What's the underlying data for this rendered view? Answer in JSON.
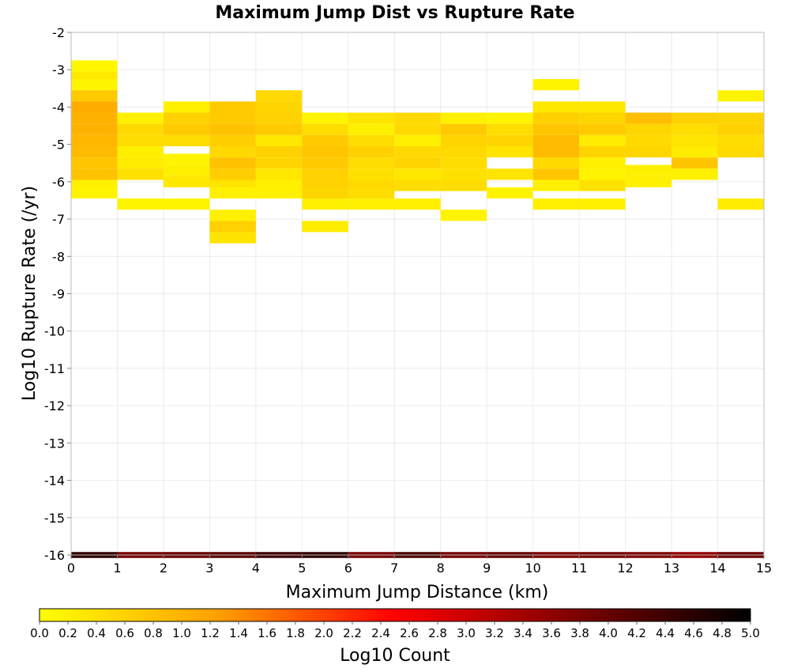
{
  "chart_data": {
    "type": "heatmap",
    "title": "Maximum Jump Dist vs Rupture Rate",
    "xlabel": "Maximum Jump Distance (km)",
    "ylabel": "Log10 Rupture Rate (/yr)",
    "xlim": [
      0,
      15
    ],
    "ylim": [
      -16,
      -2
    ],
    "x_ticks": [
      "0",
      "1",
      "2",
      "3",
      "4",
      "5",
      "6",
      "7",
      "8",
      "9",
      "10",
      "11",
      "12",
      "13",
      "14",
      "15"
    ],
    "y_ticks": [
      "-2",
      "-3",
      "-4",
      "-5",
      "-6",
      "-7",
      "-8",
      "-9",
      "-10",
      "-11",
      "-12",
      "-13",
      "-14",
      "-15",
      "-16"
    ],
    "grid": true,
    "colorscale": {
      "label": "Log10 Count",
      "range": [
        0,
        5
      ],
      "ticks": [
        "0.0",
        "0.2",
        "0.4",
        "0.6",
        "0.8",
        "1.0",
        "1.2",
        "1.4",
        "1.6",
        "1.8",
        "2.0",
        "2.2",
        "2.4",
        "2.6",
        "2.8",
        "3.0",
        "3.2",
        "3.4",
        "3.6",
        "3.8",
        "4.0",
        "4.2",
        "4.4",
        "4.6",
        "4.8",
        "5.0"
      ],
      "stops": [
        "#ffff00",
        "#ffa000",
        "#ff0000",
        "#800000",
        "#000000"
      ]
    },
    "cell_size": [
      1,
      0.3
    ],
    "cells": [
      [
        0,
        -2.9,
        0.1
      ],
      [
        0,
        -3.2,
        0.3
      ],
      [
        0,
        -3.4,
        0.15
      ],
      [
        0,
        -3.7,
        0.7
      ],
      [
        0,
        -4.0,
        1.1
      ],
      [
        0,
        -4.3,
        1.0
      ],
      [
        0,
        -4.6,
        1.0
      ],
      [
        0,
        -4.9,
        0.95
      ],
      [
        0,
        -5.2,
        0.9
      ],
      [
        0,
        -5.5,
        0.75
      ],
      [
        0,
        -5.8,
        0.8
      ],
      [
        0,
        -6.1,
        0.2
      ],
      [
        0,
        -6.3,
        0.15
      ],
      [
        1,
        -4.3,
        0.2
      ],
      [
        1,
        -4.6,
        0.5
      ],
      [
        1,
        -4.9,
        0.45
      ],
      [
        1,
        -5.2,
        0.2
      ],
      [
        1,
        -5.5,
        0.25
      ],
      [
        1,
        -5.8,
        0.4
      ],
      [
        1,
        -6.6,
        0.15
      ],
      [
        2,
        -4.0,
        0.2
      ],
      [
        2,
        -4.3,
        0.6
      ],
      [
        2,
        -4.6,
        0.7
      ],
      [
        2,
        -4.9,
        0.45
      ],
      [
        2,
        -5.4,
        0.15
      ],
      [
        2,
        -5.7,
        0.2
      ],
      [
        2,
        -6.0,
        0.3
      ],
      [
        2,
        -6.6,
        0.15
      ],
      [
        3,
        -4.0,
        0.7
      ],
      [
        3,
        -4.3,
        0.7
      ],
      [
        3,
        -4.6,
        0.8
      ],
      [
        3,
        -4.9,
        0.65
      ],
      [
        3,
        -5.2,
        0.5
      ],
      [
        3,
        -5.5,
        0.8
      ],
      [
        3,
        -5.8,
        0.65
      ],
      [
        3,
        -6.1,
        0.35
      ],
      [
        3,
        -6.3,
        0.2
      ],
      [
        3,
        -6.9,
        0.2
      ],
      [
        3,
        -7.2,
        0.6
      ],
      [
        3,
        -7.5,
        0.35
      ],
      [
        4,
        -3.7,
        0.5
      ],
      [
        4,
        -4.0,
        0.55
      ],
      [
        4,
        -4.3,
        0.6
      ],
      [
        4,
        -4.6,
        0.7
      ],
      [
        4,
        -4.9,
        0.3
      ],
      [
        4,
        -5.2,
        0.6
      ],
      [
        4,
        -5.5,
        0.55
      ],
      [
        4,
        -5.8,
        0.3
      ],
      [
        4,
        -6.1,
        0.2
      ],
      [
        4,
        -6.3,
        0.2
      ],
      [
        5,
        -4.3,
        0.15
      ],
      [
        5,
        -4.6,
        0.45
      ],
      [
        5,
        -4.9,
        0.7
      ],
      [
        5,
        -5.2,
        0.75
      ],
      [
        5,
        -5.5,
        0.7
      ],
      [
        5,
        -5.8,
        0.6
      ],
      [
        5,
        -6.1,
        0.6
      ],
      [
        5,
        -6.3,
        0.55
      ],
      [
        5,
        -6.6,
        0.2
      ],
      [
        5,
        -7.2,
        0.25
      ],
      [
        6,
        -4.3,
        0.35
      ],
      [
        6,
        -4.6,
        0.2
      ],
      [
        6,
        -4.9,
        0.45
      ],
      [
        6,
        -5.2,
        0.6
      ],
      [
        6,
        -5.5,
        0.45
      ],
      [
        6,
        -5.8,
        0.4
      ],
      [
        6,
        -6.1,
        0.5
      ],
      [
        6,
        -6.3,
        0.45
      ],
      [
        6,
        -6.6,
        0.2
      ],
      [
        7,
        -4.3,
        0.5
      ],
      [
        7,
        -4.6,
        0.5
      ],
      [
        7,
        -4.9,
        0.2
      ],
      [
        7,
        -5.2,
        0.5
      ],
      [
        7,
        -5.5,
        0.55
      ],
      [
        7,
        -5.8,
        0.3
      ],
      [
        7,
        -6.1,
        0.45
      ],
      [
        7,
        -6.6,
        0.2
      ],
      [
        8,
        -4.3,
        0.2
      ],
      [
        8,
        -4.6,
        0.7
      ],
      [
        8,
        -4.9,
        0.55
      ],
      [
        8,
        -5.2,
        0.5
      ],
      [
        8,
        -5.5,
        0.45
      ],
      [
        8,
        -5.8,
        0.4
      ],
      [
        8,
        -6.1,
        0.45
      ],
      [
        8,
        -6.9,
        0.15
      ],
      [
        9,
        -4.3,
        0.15
      ],
      [
        9,
        -4.6,
        0.45
      ],
      [
        9,
        -4.9,
        0.55
      ],
      [
        9,
        -5.2,
        0.35
      ],
      [
        9,
        -5.8,
        0.35
      ],
      [
        9,
        -6.3,
        0.15
      ],
      [
        10,
        -3.4,
        0.15
      ],
      [
        10,
        -4.0,
        0.3
      ],
      [
        10,
        -4.3,
        0.6
      ],
      [
        10,
        -4.6,
        0.75
      ],
      [
        10,
        -4.9,
        0.9
      ],
      [
        10,
        -5.2,
        0.9
      ],
      [
        10,
        -5.5,
        0.5
      ],
      [
        10,
        -5.8,
        0.75
      ],
      [
        10,
        -6.1,
        0.2
      ],
      [
        10,
        -6.6,
        0.2
      ],
      [
        11,
        -4.0,
        0.3
      ],
      [
        11,
        -4.3,
        0.55
      ],
      [
        11,
        -4.6,
        0.7
      ],
      [
        11,
        -4.9,
        0.25
      ],
      [
        11,
        -5.2,
        0.55
      ],
      [
        11,
        -5.5,
        0.2
      ],
      [
        11,
        -5.8,
        0.15
      ],
      [
        11,
        -6.1,
        0.4
      ],
      [
        11,
        -6.6,
        0.2
      ],
      [
        12,
        -4.3,
        0.85
      ],
      [
        12,
        -4.6,
        0.55
      ],
      [
        12,
        -4.9,
        0.5
      ],
      [
        12,
        -5.2,
        0.55
      ],
      [
        12,
        -5.7,
        0.2
      ],
      [
        12,
        -6.0,
        0.2
      ],
      [
        13,
        -4.3,
        0.6
      ],
      [
        13,
        -4.6,
        0.45
      ],
      [
        13,
        -4.9,
        0.35
      ],
      [
        13,
        -5.2,
        0.25
      ],
      [
        13,
        -5.5,
        0.75
      ],
      [
        13,
        -5.8,
        0.2
      ],
      [
        14,
        -3.7,
        0.15
      ],
      [
        14,
        -4.3,
        0.55
      ],
      [
        14,
        -4.6,
        0.6
      ],
      [
        14,
        -4.9,
        0.45
      ],
      [
        14,
        -5.2,
        0.5
      ],
      [
        14,
        -6.6,
        0.25
      ]
    ],
    "bottom_row": {
      "y": -16,
      "values": [
        4.55,
        3.85,
        3.95,
        4.1,
        4.4,
        4.55,
        3.8,
        4.25,
        3.85,
        4.0,
        3.75,
        3.85,
        3.75,
        3.55,
        3.95
      ]
    }
  }
}
